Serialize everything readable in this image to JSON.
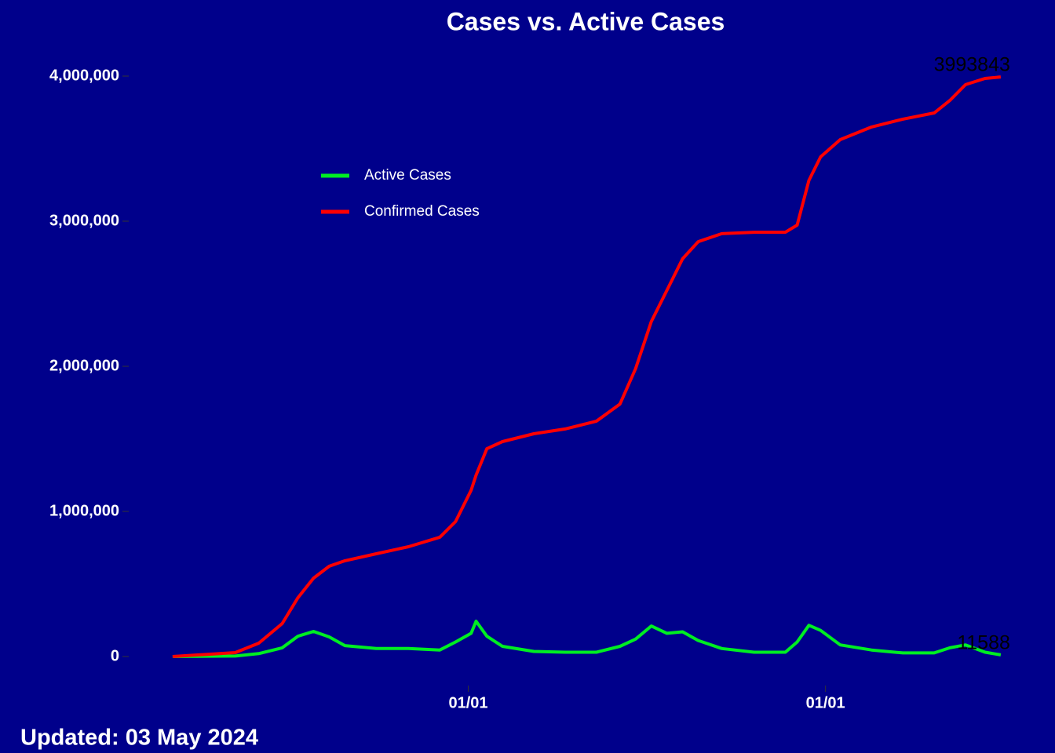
{
  "chart_data": {
    "type": "line",
    "title": "Cases vs. Active Cases",
    "annotation": "Updated: 03 May 2024",
    "x": [
      0,
      64,
      88,
      112,
      128,
      144,
      160,
      176,
      208,
      241,
      273,
      289,
      305,
      310,
      321,
      337,
      369,
      401,
      433,
      457,
      473,
      489,
      505,
      521,
      537,
      561,
      594,
      626,
      638,
      650,
      662,
      682,
      714,
      746,
      778,
      794,
      810,
      830,
      846
    ],
    "series": [
      {
        "name": "Active Cases",
        "color": "#00ee22",
        "values": [
          0,
          3000,
          20000,
          60000,
          140000,
          173000,
          135000,
          75000,
          55000,
          55000,
          45000,
          100000,
          160000,
          243000,
          140000,
          70000,
          35000,
          30000,
          30000,
          70000,
          120000,
          210000,
          160000,
          170000,
          110000,
          55000,
          30000,
          30000,
          100000,
          215000,
          180000,
          80000,
          45000,
          25000,
          25000,
          60000,
          80000,
          30000,
          11588
        ]
      },
      {
        "name": "Confirmed Cases",
        "color": "#ff0000",
        "values": [
          0,
          27000,
          92000,
          227000,
          405000,
          540000,
          622000,
          660000,
          708000,
          757000,
          822000,
          930000,
          1146000,
          1250000,
          1432000,
          1481000,
          1535000,
          1568000,
          1622000,
          1740000,
          1984000,
          2308000,
          2524000,
          2741000,
          2859000,
          2914000,
          2924000,
          2924000,
          2973000,
          3281000,
          3443000,
          3562000,
          3649000,
          3703000,
          3746000,
          3832000,
          3941000,
          3984000,
          3993843
        ]
      }
    ],
    "xlim": [
      -44,
      895
    ],
    "xticks": [
      {
        "value": 302,
        "label": "01/01"
      },
      {
        "value": 667,
        "label": "01/01"
      }
    ],
    "ylim": [
      -200000,
      4200000
    ],
    "yticks": [
      0,
      {
        "value": 1000000,
        "label": "1,000,000"
      },
      {
        "value": 2000000,
        "label": "2,000,000"
      },
      {
        "value": 3000000,
        "label": "3,000,000"
      },
      {
        "value": 4000000,
        "label": "4,000,000"
      }
    ],
    "grid": false
  }
}
